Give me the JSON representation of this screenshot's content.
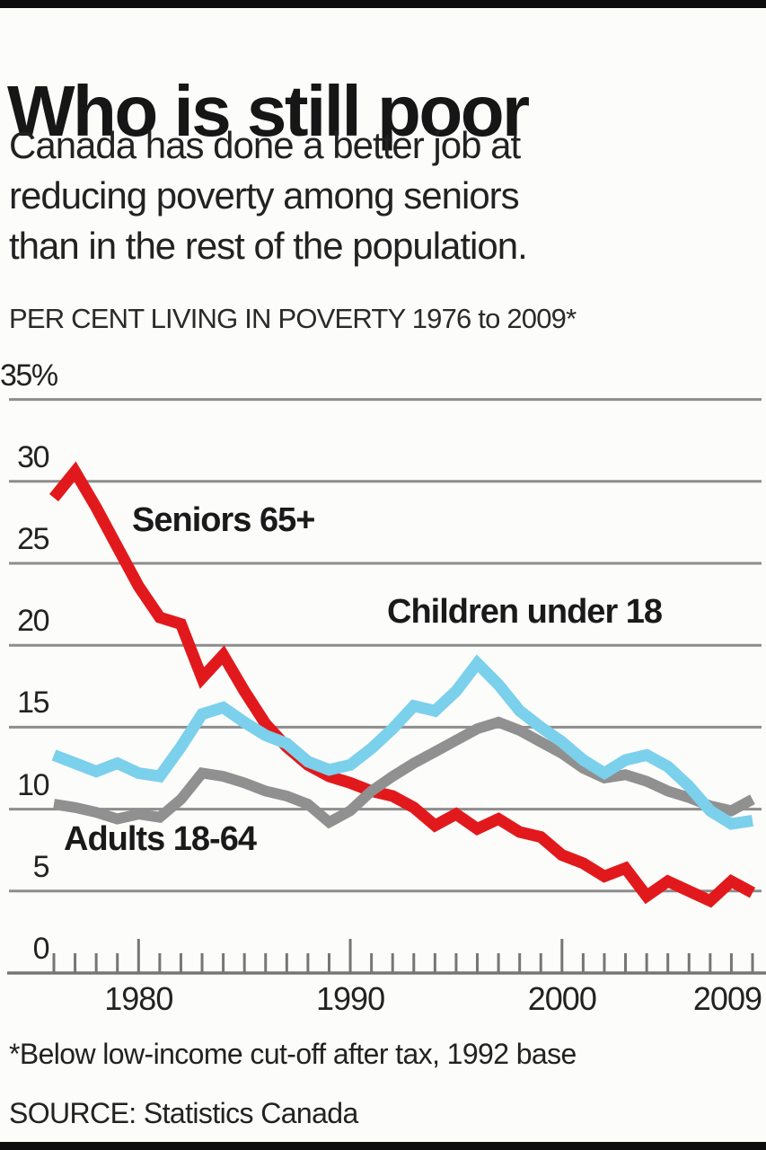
{
  "header": {
    "title": "Who is still poor",
    "subtitle_lines": [
      "Canada has done a better job at",
      "reducing poverty among seniors",
      "than in the rest of the population."
    ],
    "kicker": "PER CENT LIVING IN POVERTY 1976 to 2009*"
  },
  "chart_data": {
    "type": "line",
    "title": "PER CENT LIVING IN POVERTY 1976 to 2009*",
    "xlabel": "",
    "ylabel": "Per cent living in poverty",
    "xlim": [
      1976,
      2009
    ],
    "ylim": [
      0,
      35
    ],
    "grid": true,
    "legend_position": "inline-annotations",
    "x": [
      1976,
      1977,
      1978,
      1979,
      1980,
      1981,
      1982,
      1983,
      1984,
      1985,
      1986,
      1987,
      1988,
      1989,
      1990,
      1991,
      1992,
      1993,
      1994,
      1995,
      1996,
      1997,
      1998,
      1999,
      2000,
      2001,
      2002,
      2003,
      2004,
      2005,
      2006,
      2007,
      2008,
      2009
    ],
    "series": [
      {
        "name": "Seniors 65+",
        "color": "#e2191c",
        "stroke_width": 13,
        "values": [
          29.0,
          30.6,
          28.4,
          26.0,
          23.6,
          21.7,
          21.3,
          18.0,
          19.4,
          17.2,
          15.2,
          13.8,
          12.7,
          12.0,
          11.6,
          11.1,
          10.8,
          10.1,
          9.0,
          9.7,
          8.8,
          9.4,
          8.6,
          8.3,
          7.2,
          6.7,
          5.9,
          6.4,
          4.7,
          5.6,
          5.0,
          4.4,
          5.6,
          4.9
        ]
      },
      {
        "name": "Children under 18",
        "color": "#7bd0ec",
        "stroke_width": 13,
        "values": [
          13.3,
          12.8,
          12.3,
          12.8,
          12.2,
          12.0,
          13.8,
          15.8,
          16.2,
          15.3,
          14.5,
          14.0,
          12.9,
          12.4,
          12.7,
          13.7,
          14.9,
          16.3,
          16.0,
          17.2,
          18.9,
          17.6,
          16.0,
          15.0,
          14.1,
          13.0,
          12.2,
          13.0,
          13.3,
          12.6,
          11.4,
          9.9,
          9.1,
          9.3
        ]
      },
      {
        "name": "Adults 18-64",
        "color": "#909090",
        "stroke_width": 12,
        "values": [
          10.3,
          10.1,
          9.8,
          9.4,
          9.7,
          9.5,
          10.6,
          12.2,
          12.0,
          11.6,
          11.1,
          10.8,
          10.3,
          9.2,
          9.9,
          11.1,
          12.0,
          12.8,
          13.5,
          14.2,
          14.9,
          15.3,
          14.8,
          14.1,
          13.4,
          12.5,
          11.9,
          12.1,
          11.7,
          11.1,
          10.7,
          10.2,
          9.9,
          10.6
        ]
      }
    ],
    "draw_order": [
      0,
      2,
      1
    ],
    "y_ticks": [
      {
        "value": 35,
        "label": "35%"
      },
      {
        "value": 30,
        "label": "30"
      },
      {
        "value": 25,
        "label": "25"
      },
      {
        "value": 20,
        "label": "20"
      },
      {
        "value": 15,
        "label": "15"
      },
      {
        "value": 10,
        "label": "10"
      },
      {
        "value": 5,
        "label": "5"
      },
      {
        "value": 0,
        "label": "0"
      }
    ],
    "x_major_ticks": [
      1980,
      1990,
      2000
    ],
    "x_tick_labels": [
      {
        "year": 1980,
        "label": "1980",
        "align": "center"
      },
      {
        "year": 1990,
        "label": "1990",
        "align": "center"
      },
      {
        "year": 2000,
        "label": "2000",
        "align": "center"
      },
      {
        "year": 2009,
        "label": "2009",
        "align": "right"
      }
    ],
    "colors": {
      "grid": "#8d8d8d",
      "axis": "#767676",
      "background": "#fcfcfb",
      "text": "#1d1d1d"
    }
  },
  "footer": {
    "footnote": "*Below low-income cut-off after tax, 1992 base",
    "source": "SOURCE: Statistics Canada"
  }
}
